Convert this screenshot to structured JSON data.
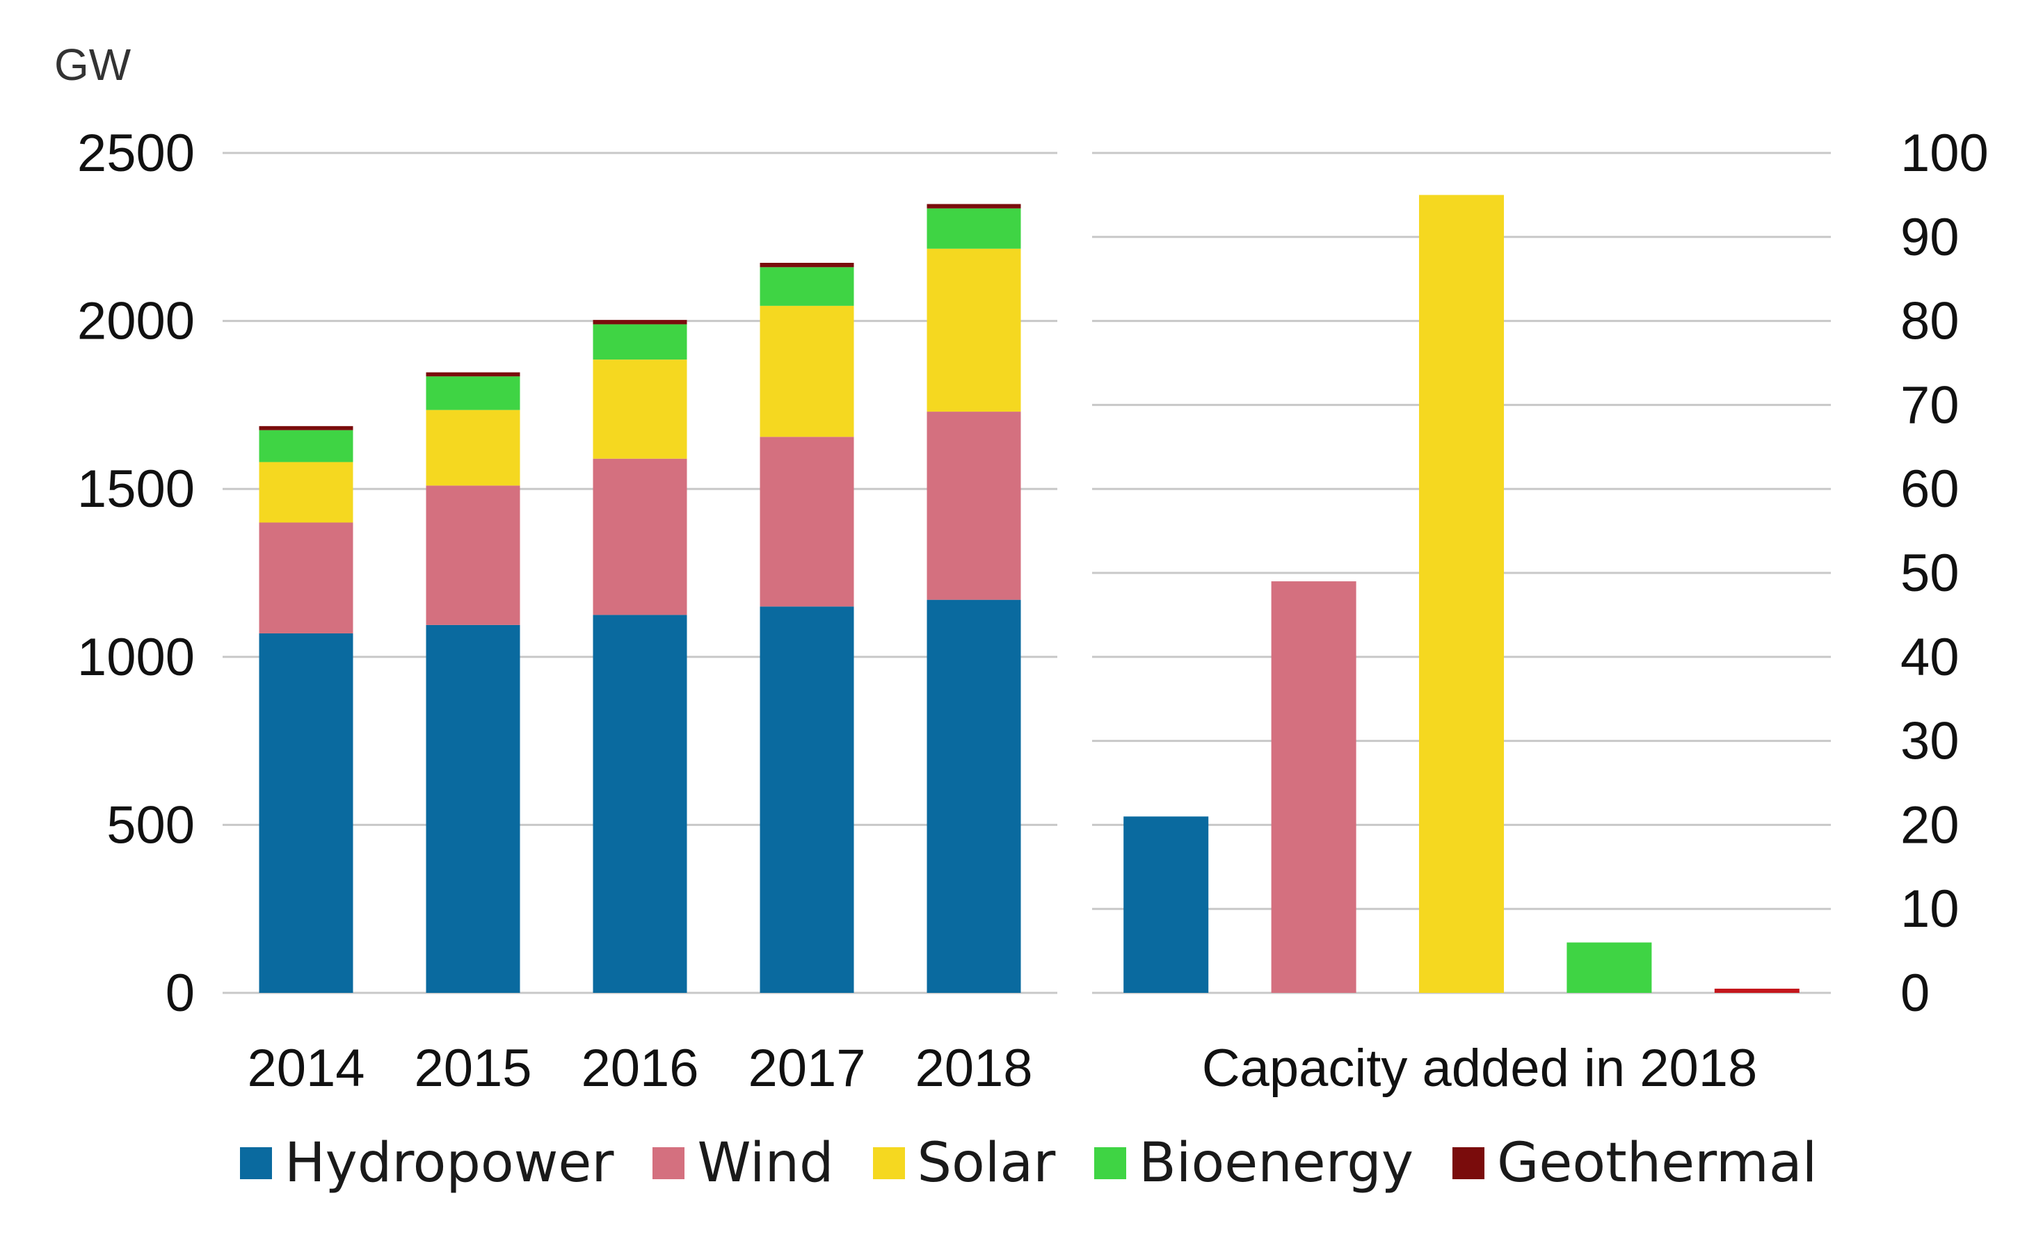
{
  "chart_data": [
    {
      "type": "bar",
      "stacked": true,
      "unit": "GW",
      "categories": [
        "2014",
        "2015",
        "2016",
        "2017",
        "2018"
      ],
      "ylim": [
        0,
        2500
      ],
      "yticks": [
        "0",
        "500",
        "1000",
        "1500",
        "2000",
        "2500"
      ],
      "grid": true,
      "series": [
        {
          "name": "Hydropower",
          "color": "#0a6a9f",
          "values": [
            1070,
            1095,
            1125,
            1150,
            1170
          ]
        },
        {
          "name": "Wind",
          "color": "#d4707f",
          "values": [
            330,
            415,
            465,
            505,
            560
          ]
        },
        {
          "name": "Solar",
          "color": "#f5d820",
          "values": [
            180,
            225,
            295,
            390,
            485
          ]
        },
        {
          "name": "Bioenergy",
          "color": "#3fd444",
          "values": [
            95,
            100,
            105,
            115,
            120
          ]
        },
        {
          "name": "Geothermal",
          "color": "#7a0c0c",
          "values": [
            12,
            12,
            13,
            13,
            13
          ]
        }
      ]
    },
    {
      "type": "bar",
      "xlabel": "Capacity added in 2018",
      "categories": [
        "Hydropower",
        "Wind",
        "Solar",
        "Bioenergy",
        "Geothermal"
      ],
      "values": [
        21,
        49,
        95,
        6,
        0.5
      ],
      "colors": [
        "#0a6a9f",
        "#d4707f",
        "#f5d820",
        "#3fd444",
        "#c4161c"
      ],
      "ylim": [
        0,
        100
      ],
      "yticks": [
        "0",
        "10",
        "20",
        "30",
        "40",
        "50",
        "60",
        "70",
        "80",
        "90",
        "100"
      ],
      "axis_position": "right",
      "grid": true
    }
  ],
  "legend": {
    "placement": "bottom",
    "items": [
      {
        "label": "Hydropower",
        "color": "#0a6a9f"
      },
      {
        "label": "Wind",
        "color": "#d4707f"
      },
      {
        "label": "Solar",
        "color": "#f5d820"
      },
      {
        "label": "Bioenergy",
        "color": "#3fd444"
      },
      {
        "label": "Geothermal",
        "color": "#7a0c0c"
      }
    ]
  }
}
